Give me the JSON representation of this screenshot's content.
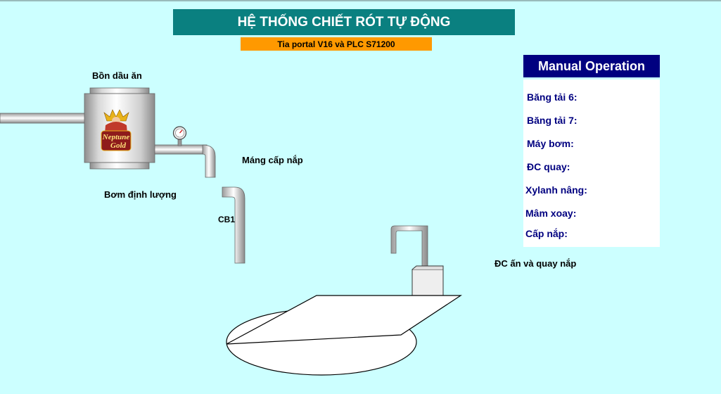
{
  "header": {
    "title": "HỆ THỐNG CHIẾT RÓT TỰ ĐỘNG",
    "subtitle": "Tia portal V16 và PLC S71200"
  },
  "labels": {
    "tank": "Bồn dầu ăn",
    "cap_chute": "Máng cấp nắp",
    "dosing_pump": "Bơm định lượng",
    "sensor": "CB1",
    "cap_motor": "ĐC ấn và quay nắp"
  },
  "logo": {
    "line1": "Neptune",
    "line2": "Gold"
  },
  "manual": {
    "title": "Manual Operation",
    "items": [
      "Băng tải 6:",
      "Băng tải 7:",
      "Máy bơm:",
      "ĐC quay:",
      "Xylanh nâng:",
      "Mâm xoay:",
      "Cấp nắp:"
    ]
  },
  "colors": {
    "background": "#ccffff",
    "title_bg": "#0a8080",
    "subtitle_bg": "#ff9900",
    "manual_header_bg": "#000080",
    "manual_text": "#000080"
  }
}
